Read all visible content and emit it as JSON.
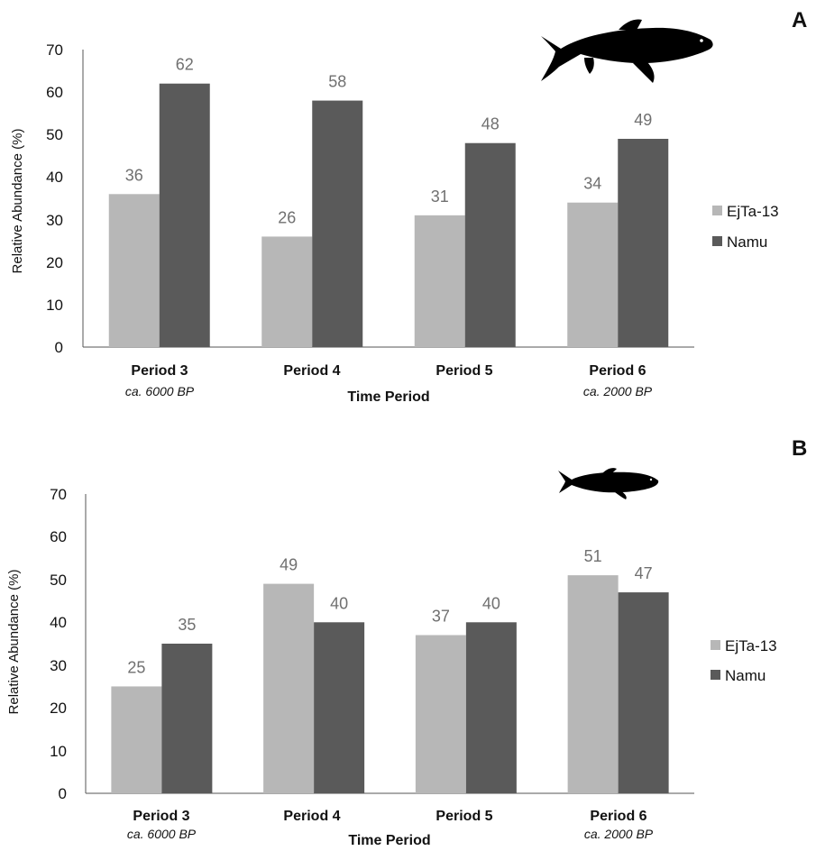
{
  "chart_data": [
    {
      "type": "bar",
      "panel_label": "A",
      "categories": [
        "Period 3",
        "Period 4",
        "Period 5",
        "Period 6"
      ],
      "category_sublabels": [
        "ca. 6000 BP",
        "",
        "",
        "ca. 2000 BP"
      ],
      "series": [
        {
          "name": "EjTa-13",
          "values": [
            36,
            26,
            31,
            34
          ],
          "color": "#b7b7b7"
        },
        {
          "name": "Namu",
          "values": [
            62,
            58,
            48,
            49
          ],
          "color": "#5a5a5a"
        }
      ],
      "data_labels": [
        [
          "36",
          "26",
          "31",
          "34"
        ],
        [
          "62",
          "58",
          "48",
          "49"
        ]
      ],
      "xlabel": "Time Period",
      "ylabel": "Relative Abundance  (%)",
      "ylim": [
        0,
        70
      ],
      "yticks": [
        "0",
        "10",
        "20",
        "30",
        "40",
        "50",
        "60",
        "70"
      ],
      "grid": false,
      "legend_position": "right",
      "icon": "large-fish-silhouette-icon"
    },
    {
      "type": "bar",
      "panel_label": "B",
      "categories": [
        "Period 3",
        "Period 4",
        "Period 5",
        "Period 6"
      ],
      "category_sublabels": [
        "ca. 6000 BP",
        "",
        "",
        "ca. 2000 BP"
      ],
      "series": [
        {
          "name": "EjTa-13",
          "values": [
            25,
            49,
            37,
            51
          ],
          "color": "#b7b7b7"
        },
        {
          "name": "Namu",
          "values": [
            35,
            40,
            40,
            47
          ],
          "color": "#5a5a5a"
        }
      ],
      "data_labels": [
        [
          "25",
          "49",
          "37",
          "51"
        ],
        [
          "35",
          "40",
          "40",
          "47"
        ]
      ],
      "xlabel": "Time Period",
      "ylabel": "Relative Abundance (%)",
      "ylim": [
        0,
        70
      ],
      "yticks": [
        "0",
        "10",
        "20",
        "30",
        "40",
        "50",
        "60",
        "70"
      ],
      "grid": false,
      "legend_position": "right",
      "icon": "small-fish-silhouette-icon"
    }
  ]
}
